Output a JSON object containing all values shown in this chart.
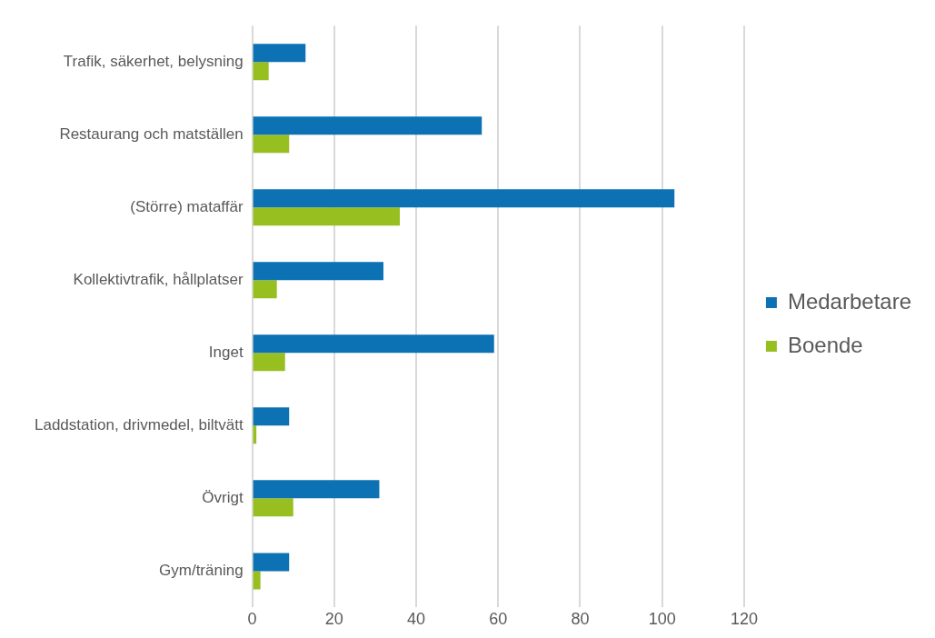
{
  "chart_data": {
    "type": "bar",
    "orientation": "horizontal",
    "categories": [
      "Trafik, säkerhet, belysning",
      "Restaurang och matställen",
      "(Större) mataffär",
      "Kollektivtrafik, hållplatser",
      "Inget",
      "Laddstation, drivmedel, biltvätt",
      "Övrigt",
      "Gym/träning"
    ],
    "series": [
      {
        "name": "Medarbetare",
        "color": "#0c72b4",
        "values": [
          13,
          56,
          103,
          32,
          59,
          9,
          31,
          9
        ]
      },
      {
        "name": "Boende",
        "color": "#97bf20",
        "values": [
          4,
          9,
          36,
          6,
          8,
          1,
          10,
          2
        ]
      }
    ],
    "xlim": [
      0,
      120
    ],
    "xticks": [
      0,
      20,
      40,
      60,
      80,
      100,
      120
    ],
    "grid": "x",
    "legend": "right"
  }
}
